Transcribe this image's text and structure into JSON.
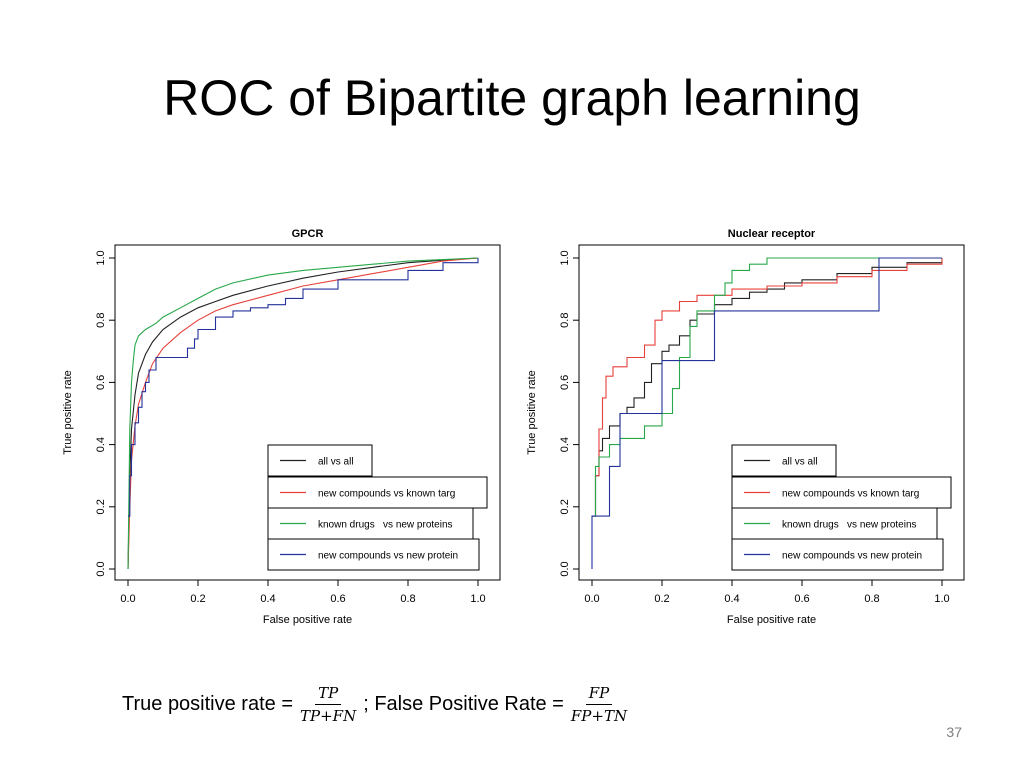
{
  "slide": {
    "title": "ROC of Bipartite graph learning",
    "formula": {
      "tpr_label": "True positive rate = ",
      "tpr_numerator": "TP",
      "tpr_denominator": "TP+FN",
      "separator": "; False Positive Rate = ",
      "fpr_numerator": "FP",
      "fpr_denominator": "FP+TN"
    },
    "page_number": "37"
  },
  "colors": {
    "all_vs_all": "#222222",
    "new_compounds_vs_known_targ": "#e8413b",
    "known_drugs_vs_new_proteins": "#27a84a",
    "new_compounds_vs_new_protein": "#24339a"
  },
  "chart_data": [
    {
      "type": "line",
      "title": "GPCR",
      "xlabel": "False positive rate",
      "ylabel": "True positive rate",
      "xlim": [
        0,
        1
      ],
      "ylim": [
        0,
        1
      ],
      "xticks": [
        "0.0",
        "0.2",
        "0.4",
        "0.6",
        "0.8",
        "1.0"
      ],
      "yticks": [
        "0.0",
        "0.2",
        "0.4",
        "0.6",
        "0.8",
        "1.0"
      ],
      "grid": false,
      "legend_position": "bottom-right",
      "series": [
        {
          "name": "all vs all",
          "color": "#222222",
          "step": false,
          "x": [
            0,
            0.005,
            0.01,
            0.02,
            0.03,
            0.05,
            0.07,
            0.1,
            0.15,
            0.2,
            0.25,
            0.3,
            0.4,
            0.5,
            0.6,
            0.7,
            0.8,
            0.9,
            1.0
          ],
          "y": [
            0,
            0.3,
            0.45,
            0.56,
            0.63,
            0.69,
            0.73,
            0.77,
            0.81,
            0.84,
            0.86,
            0.88,
            0.91,
            0.935,
            0.955,
            0.97,
            0.985,
            0.993,
            1.0
          ]
        },
        {
          "name": "new compounds vs known targ",
          "color": "#e8413b",
          "step": false,
          "x": [
            0,
            0.005,
            0.01,
            0.02,
            0.03,
            0.05,
            0.07,
            0.1,
            0.15,
            0.2,
            0.25,
            0.3,
            0.4,
            0.5,
            0.6,
            0.7,
            0.8,
            0.9,
            1.0
          ],
          "y": [
            0,
            0.2,
            0.35,
            0.46,
            0.53,
            0.6,
            0.66,
            0.71,
            0.76,
            0.8,
            0.83,
            0.85,
            0.88,
            0.91,
            0.93,
            0.95,
            0.97,
            0.99,
            1.0
          ]
        },
        {
          "name": "known drugs   vs new proteins",
          "color": "#27a84a",
          "step": false,
          "x": [
            0,
            0.005,
            0.01,
            0.015,
            0.02,
            0.03,
            0.05,
            0.08,
            0.1,
            0.15,
            0.2,
            0.25,
            0.3,
            0.4,
            0.5,
            0.6,
            0.7,
            0.8,
            0.9,
            1.0
          ],
          "y": [
            0,
            0.45,
            0.6,
            0.67,
            0.72,
            0.75,
            0.77,
            0.79,
            0.81,
            0.84,
            0.87,
            0.9,
            0.92,
            0.945,
            0.96,
            0.97,
            0.98,
            0.99,
            0.995,
            1.0
          ]
        },
        {
          "name": "new compounds vs new protein",
          "color": "#24339a",
          "step": true,
          "x": [
            0,
            0.005,
            0.01,
            0.02,
            0.03,
            0.04,
            0.05,
            0.06,
            0.08,
            0.1,
            0.15,
            0.17,
            0.19,
            0.2,
            0.25,
            0.3,
            0.35,
            0.4,
            0.45,
            0.5,
            0.6,
            0.7,
            0.8,
            0.9,
            1.0
          ],
          "y": [
            0.17,
            0.3,
            0.4,
            0.47,
            0.52,
            0.57,
            0.6,
            0.64,
            0.68,
            0.68,
            0.68,
            0.71,
            0.74,
            0.77,
            0.81,
            0.83,
            0.84,
            0.85,
            0.87,
            0.9,
            0.93,
            0.93,
            0.96,
            0.985,
            1.0
          ]
        }
      ]
    },
    {
      "type": "line",
      "title": "Nuclear receptor",
      "xlabel": "False positive rate",
      "ylabel": "True positive rate",
      "xlim": [
        0,
        1
      ],
      "ylim": [
        0,
        1
      ],
      "xticks": [
        "0.0",
        "0.2",
        "0.4",
        "0.6",
        "0.8",
        "1.0"
      ],
      "yticks": [
        "0.0",
        "0.2",
        "0.4",
        "0.6",
        "0.8",
        "1.0"
      ],
      "grid": false,
      "legend_position": "bottom-right",
      "series": [
        {
          "name": "all vs all",
          "color": "#222222",
          "step": true,
          "x": [
            0,
            0.01,
            0.02,
            0.03,
            0.05,
            0.08,
            0.1,
            0.12,
            0.15,
            0.17,
            0.2,
            0.22,
            0.25,
            0.28,
            0.3,
            0.35,
            0.4,
            0.45,
            0.5,
            0.55,
            0.6,
            0.7,
            0.8,
            0.9,
            1.0
          ],
          "y": [
            0.17,
            0.3,
            0.38,
            0.42,
            0.46,
            0.5,
            0.52,
            0.55,
            0.6,
            0.66,
            0.7,
            0.72,
            0.75,
            0.8,
            0.82,
            0.85,
            0.87,
            0.89,
            0.9,
            0.92,
            0.93,
            0.95,
            0.97,
            0.985,
            1.0
          ]
        },
        {
          "name": "new compounds vs known targ",
          "color": "#e8413b",
          "step": true,
          "x": [
            0,
            0.01,
            0.02,
            0.03,
            0.04,
            0.06,
            0.1,
            0.15,
            0.18,
            0.2,
            0.25,
            0.3,
            0.4,
            0.5,
            0.6,
            0.7,
            0.8,
            0.9,
            1.0
          ],
          "y": [
            0.17,
            0.3,
            0.45,
            0.55,
            0.62,
            0.65,
            0.68,
            0.72,
            0.8,
            0.83,
            0.86,
            0.88,
            0.9,
            0.91,
            0.92,
            0.94,
            0.96,
            0.98,
            1.0
          ]
        },
        {
          "name": "known drugs   vs new proteins",
          "color": "#27a84a",
          "step": true,
          "x": [
            0,
            0.01,
            0.02,
            0.05,
            0.08,
            0.1,
            0.15,
            0.2,
            0.23,
            0.25,
            0.28,
            0.3,
            0.35,
            0.38,
            0.4,
            0.45,
            0.5,
            0.6,
            0.7,
            0.8,
            0.9,
            1.0
          ],
          "y": [
            0.17,
            0.33,
            0.36,
            0.4,
            0.42,
            0.42,
            0.46,
            0.5,
            0.58,
            0.68,
            0.78,
            0.83,
            0.88,
            0.92,
            0.96,
            0.98,
            1.0,
            1.0,
            1.0,
            1.0,
            1.0,
            1.0
          ]
        },
        {
          "name": "new compounds vs new protein",
          "color": "#24339a",
          "step": true,
          "x": [
            0,
            0.0,
            0.05,
            0.05,
            0.08,
            0.08,
            0.2,
            0.2,
            0.35,
            0.35,
            0.82,
            0.82,
            1.0
          ],
          "y": [
            0,
            0.17,
            0.17,
            0.33,
            0.33,
            0.5,
            0.5,
            0.67,
            0.67,
            0.83,
            0.83,
            1.0,
            1.0
          ]
        }
      ]
    }
  ]
}
